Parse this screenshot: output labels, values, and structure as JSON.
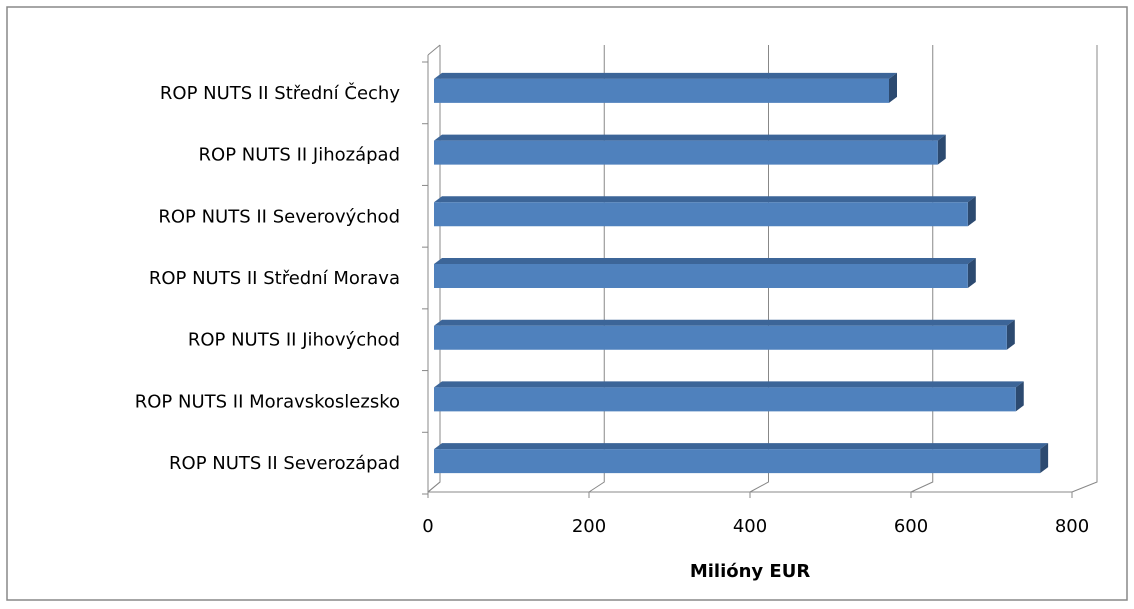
{
  "chart_data": {
    "type": "bar3d_horizontal",
    "x_label": "Milióny EUR",
    "categories": [
      "ROP NUTS II Střední Čechy",
      "ROP NUTS II Jihozápad",
      "ROP NUTS II Severovýchod",
      "ROP NUTS II Střední Morava",
      "ROP NUTS II Jihovýchod",
      "ROP NUTS II Moravskoslezsko",
      "ROP NUTS II Severozápad"
    ],
    "values": [
      560,
      620,
      657,
      657,
      705,
      716,
      746
    ],
    "color": "#4f81bd",
    "xlim": [
      0,
      800
    ],
    "xticks": [
      0,
      200,
      400,
      600,
      800
    ],
    "grid": true
  }
}
